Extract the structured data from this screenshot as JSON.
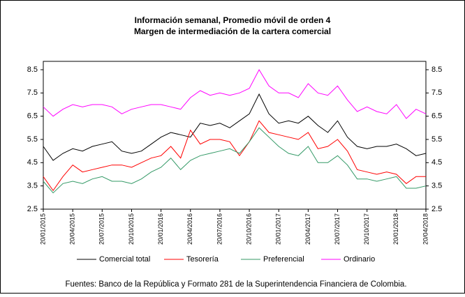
{
  "chart_data": {
    "type": "line",
    "title": "Información semanal, Promedio móvil de orden 4",
    "subtitle": "Margen de intermediación de la cartera comercial",
    "source": "Fuentes: Banco de la República y Formato 281 de la Superintendencia Financiera de Colombia.",
    "categories": [
      "20/01/2015",
      null,
      null,
      "20/04/2015",
      null,
      null,
      "20/07/2015",
      null,
      null,
      "20/10/2015",
      null,
      null,
      "20/01/2016",
      null,
      null,
      "20/04/2016",
      null,
      null,
      "20/07/2016",
      null,
      null,
      "20/10/2016",
      null,
      null,
      "20/01/2017",
      null,
      null,
      "20/04/2017",
      null,
      null,
      "20/07/2017",
      null,
      null,
      "20/10/2017",
      null,
      null,
      "20/01/2018",
      null,
      null,
      "20/04/2018"
    ],
    "series": [
      {
        "name": "Comercial total",
        "color": "#000000",
        "values": [
          5.2,
          4.6,
          4.9,
          5.1,
          5.0,
          5.2,
          5.3,
          5.4,
          5.0,
          4.9,
          5.0,
          5.3,
          5.6,
          5.8,
          5.7,
          5.6,
          6.2,
          6.1,
          6.2,
          6.0,
          6.3,
          6.6,
          7.45,
          6.6,
          6.2,
          6.3,
          6.2,
          6.5,
          6.1,
          5.8,
          6.3,
          5.6,
          5.2,
          5.1,
          5.2,
          5.2,
          5.3,
          5.1,
          4.8,
          4.9
        ]
      },
      {
        "name": "Tesorería",
        "color": "#ff0000",
        "values": [
          3.9,
          3.3,
          3.9,
          4.4,
          4.1,
          4.2,
          4.3,
          4.4,
          4.4,
          4.3,
          4.5,
          4.7,
          4.8,
          5.2,
          4.7,
          5.9,
          5.3,
          5.5,
          5.5,
          5.4,
          4.8,
          5.4,
          6.3,
          5.8,
          5.7,
          5.6,
          5.5,
          5.8,
          5.1,
          5.2,
          5.5,
          5.0,
          4.2,
          4.1,
          4.0,
          4.1,
          4.0,
          3.6,
          3.9,
          3.9
        ]
      },
      {
        "name": "Preferencial",
        "color": "#339966",
        "values": [
          3.7,
          3.2,
          3.6,
          3.7,
          3.6,
          3.8,
          3.9,
          3.7,
          3.7,
          3.6,
          3.8,
          4.1,
          4.3,
          4.7,
          4.2,
          4.6,
          4.8,
          4.9,
          5.0,
          5.1,
          4.9,
          5.4,
          6.0,
          5.6,
          5.2,
          4.9,
          4.8,
          5.2,
          4.5,
          4.5,
          4.8,
          4.4,
          3.8,
          3.8,
          3.7,
          3.8,
          3.9,
          3.4,
          3.4,
          3.5
        ]
      },
      {
        "name": "Ordinario",
        "color": "#ff00ff",
        "values": [
          6.9,
          6.5,
          6.8,
          7.0,
          6.9,
          7.0,
          7.0,
          6.9,
          6.6,
          6.8,
          6.9,
          7.0,
          7.0,
          6.9,
          6.8,
          7.3,
          7.6,
          7.4,
          7.5,
          7.4,
          7.5,
          7.7,
          8.5,
          7.8,
          7.5,
          7.5,
          7.3,
          7.9,
          7.5,
          7.4,
          7.8,
          7.2,
          6.7,
          6.9,
          6.7,
          6.6,
          7.0,
          6.4,
          6.8,
          6.6
        ]
      }
    ],
    "ylim": [
      2.5,
      8.5
    ],
    "yticks": [
      2.5,
      3.5,
      4.5,
      5.5,
      6.5,
      7.5,
      8.5
    ],
    "y2lim": [
      2.5,
      8.5
    ],
    "y2ticks": [
      2.5,
      3.5,
      4.5,
      5.5,
      6.5,
      7.5,
      8.5
    ],
    "legend": "bottom"
  }
}
